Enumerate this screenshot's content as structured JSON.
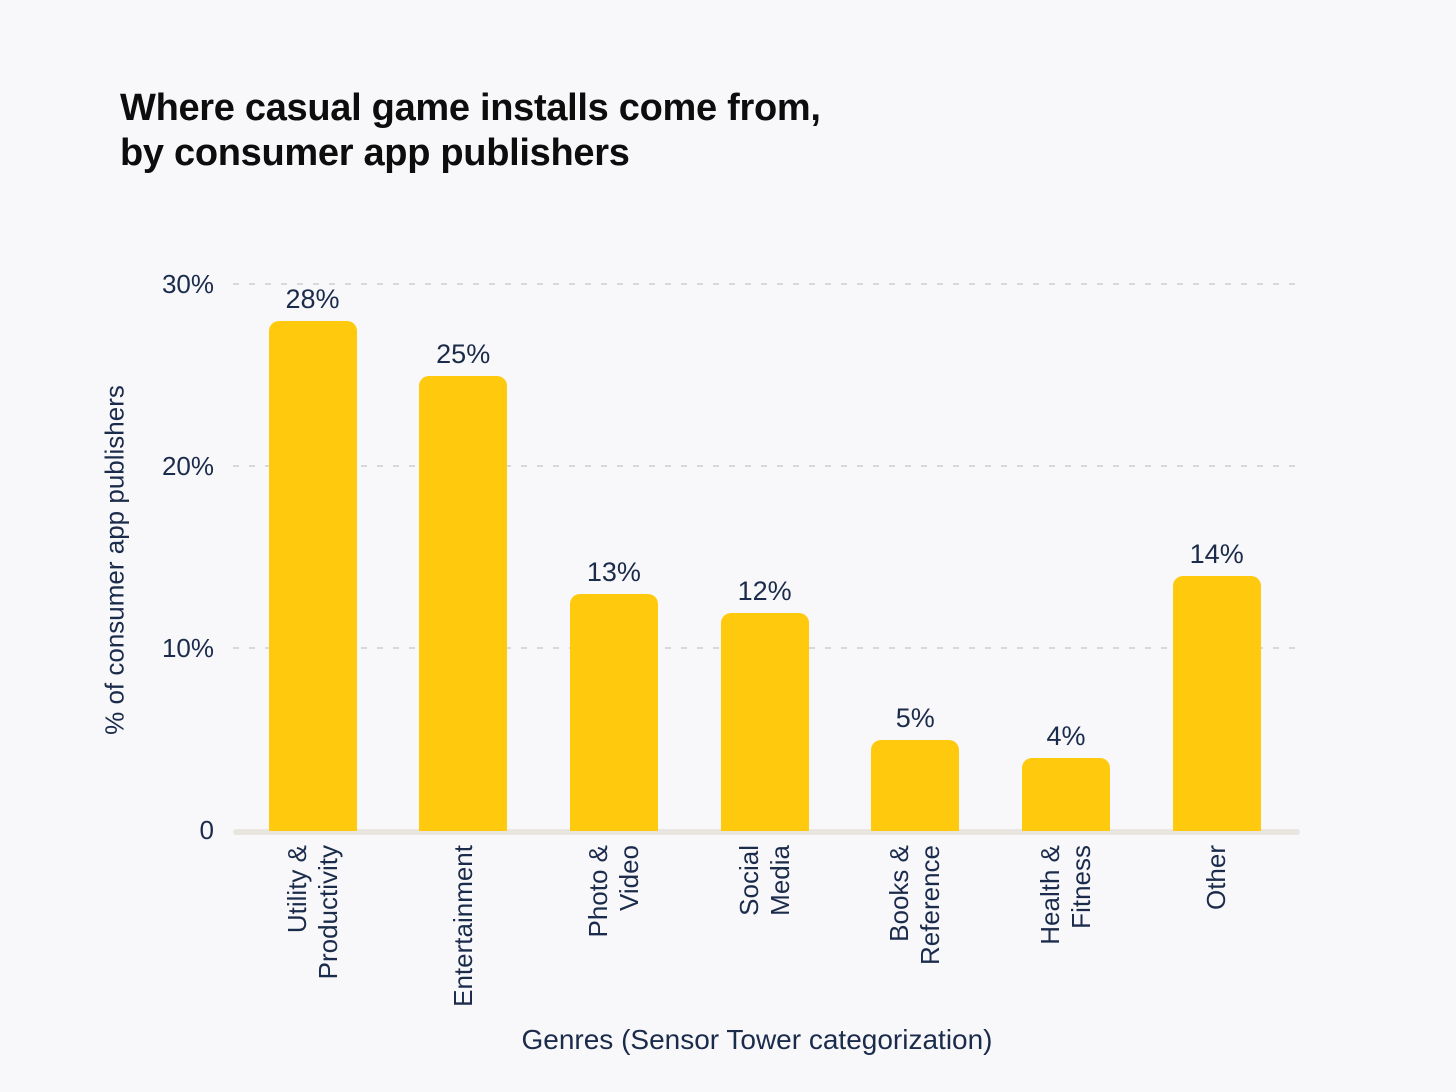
{
  "page": {
    "background_color": "#F8F8FA"
  },
  "chart": {
    "title": "Where casual game installs come from,\nby consumer app publishers"
  },
  "chart_data": {
    "type": "bar",
    "title": "Where casual game installs come from, by consumer app publishers",
    "xlabel": "Genres (Sensor Tower categorization)",
    "ylabel": "% of consumer app publishers",
    "categories": [
      "Utility & Productivity",
      "Entertainment",
      "Photo & Video",
      "Social Media",
      "Books & Reference",
      "Health & Fitness",
      "Other"
    ],
    "category_label_lines": [
      [
        "Utility &",
        "Productivity"
      ],
      [
        "Entertainment"
      ],
      [
        "Photo &",
        "Video"
      ],
      [
        "Social",
        "Media"
      ],
      [
        "Books &",
        "Reference"
      ],
      [
        "Health &",
        "Fitness"
      ],
      [
        "Other"
      ]
    ],
    "values": [
      28,
      25,
      13,
      12,
      5,
      4,
      14
    ],
    "value_labels": [
      "28%",
      "25%",
      "13%",
      "12%",
      "5%",
      "4%",
      "14%"
    ],
    "ylim": [
      0,
      30
    ],
    "yticks": [
      {
        "value": 0,
        "label": "0"
      },
      {
        "value": 10,
        "label": "10%"
      },
      {
        "value": 20,
        "label": "20%"
      },
      {
        "value": 30,
        "label": "30%"
      }
    ],
    "grid": {
      "horizontal": true,
      "style": "dashed",
      "color": "#d8d8d8"
    },
    "legend": {
      "visible": false
    },
    "colors": {
      "bar": "#FFC90D",
      "axis_text": "#1B2B4B",
      "title_text": "#0D0D0D",
      "baseline": "#E9E6E1",
      "background": "#F8F8FA"
    }
  }
}
